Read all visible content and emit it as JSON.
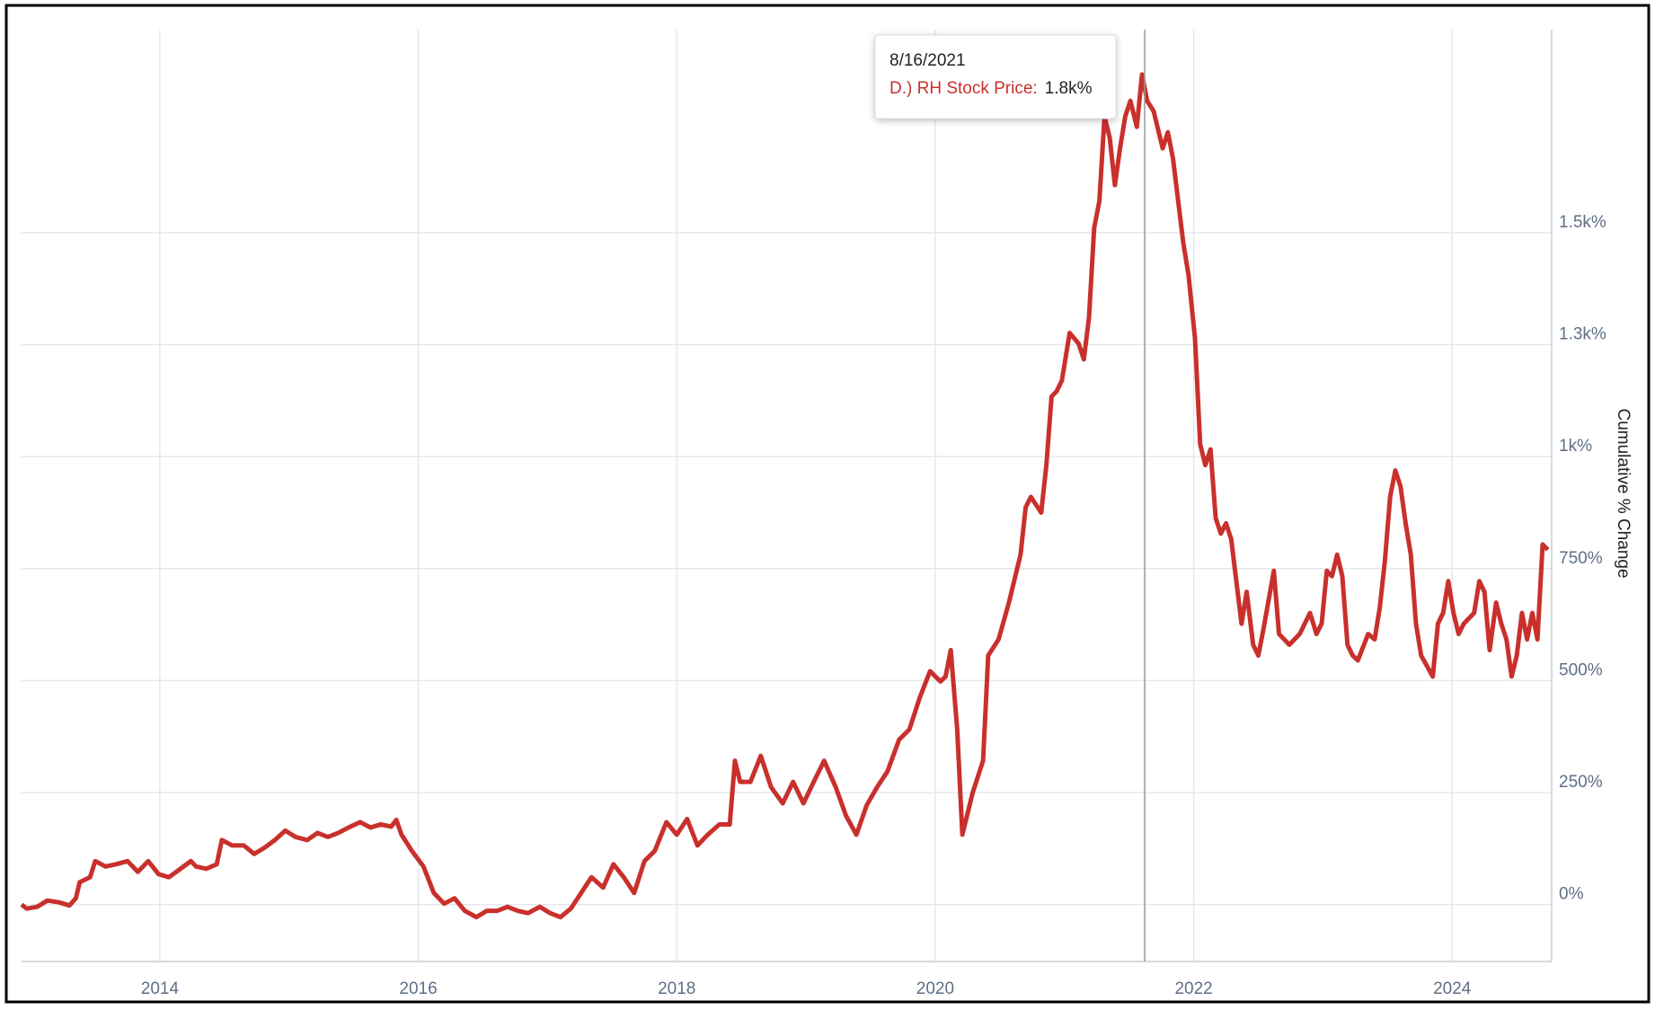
{
  "chart_data": {
    "type": "line",
    "y_label": "Cumulative % Change",
    "tooltip": {
      "date": "8/16/2021",
      "series": "D.) RH Stock Price:",
      "value": "1.8k%"
    },
    "x": [
      2012.93,
      2012.97,
      2013.05,
      2013.13,
      2013.22,
      2013.3,
      2013.35,
      2013.38,
      2013.46,
      2013.5,
      2013.58,
      2013.66,
      2013.75,
      2013.83,
      2013.91,
      2013.99,
      2014.07,
      2014.16,
      2014.24,
      2014.28,
      2014.36,
      2014.44,
      2014.48,
      2014.56,
      2014.65,
      2014.73,
      2014.81,
      2014.89,
      2014.97,
      2015.05,
      2015.14,
      2015.22,
      2015.3,
      2015.38,
      2015.46,
      2015.55,
      2015.63,
      2015.71,
      2015.79,
      2015.83,
      2015.87,
      2015.95,
      2016.04,
      2016.12,
      2016.2,
      2016.28,
      2016.36,
      2016.45,
      2016.53,
      2016.61,
      2016.69,
      2016.77,
      2016.85,
      2016.94,
      2017.02,
      2017.1,
      2017.18,
      2017.26,
      2017.34,
      2017.43,
      2017.51,
      2017.59,
      2017.67,
      2017.75,
      2017.83,
      2017.92,
      2018.0,
      2018.08,
      2018.16,
      2018.24,
      2018.33,
      2018.41,
      2018.45,
      2018.49,
      2018.57,
      2018.65,
      2018.73,
      2018.82,
      2018.9,
      2018.98,
      2019.06,
      2019.14,
      2019.23,
      2019.31,
      2019.39,
      2019.47,
      2019.55,
      2019.63,
      2019.72,
      2019.8,
      2019.88,
      2019.96,
      2020.04,
      2020.08,
      2020.12,
      2020.17,
      2020.21,
      2020.29,
      2020.37,
      2020.41,
      2020.49,
      2020.57,
      2020.66,
      2020.7,
      2020.74,
      2020.82,
      2020.86,
      2020.9,
      2020.94,
      2020.98,
      2021.04,
      2021.11,
      2021.15,
      2021.19,
      2021.23,
      2021.27,
      2021.31,
      2021.35,
      2021.39,
      2021.43,
      2021.47,
      2021.51,
      2021.56,
      2021.6,
      2021.64,
      2021.69,
      2021.76,
      2021.8,
      2021.84,
      2021.88,
      2021.92,
      2021.96,
      2022.01,
      2022.05,
      2022.09,
      2022.13,
      2022.17,
      2022.21,
      2022.25,
      2022.29,
      2022.33,
      2022.37,
      2022.41,
      2022.46,
      2022.5,
      2022.54,
      2022.62,
      2022.66,
      2022.74,
      2022.82,
      2022.9,
      2022.95,
      2022.99,
      2023.03,
      2023.07,
      2023.11,
      2023.15,
      2023.19,
      2023.23,
      2023.27,
      2023.35,
      2023.4,
      2023.44,
      2023.48,
      2023.52,
      2023.56,
      2023.6,
      2023.64,
      2023.68,
      2023.72,
      2023.76,
      2023.85,
      2023.89,
      2023.93,
      2023.97,
      2024.01,
      2024.05,
      2024.09,
      2024.17,
      2024.21,
      2024.25,
      2024.29,
      2024.34,
      2024.38,
      2024.42,
      2024.46,
      2024.5,
      2024.54,
      2024.58,
      2024.62,
      2024.66,
      2024.7,
      2024.74
    ],
    "series": [
      {
        "name": "D.) RH Stock Price",
        "color": "#c9302c",
        "values": [
          0,
          -9,
          -5,
          9,
          5,
          -2,
          14,
          50,
          61,
          97,
          85,
          90,
          97,
          73,
          97,
          68,
          61,
          80,
          97,
          85,
          80,
          90,
          144,
          132,
          132,
          113,
          127,
          144,
          165,
          151,
          144,
          160,
          151,
          160,
          172,
          184,
          172,
          179,
          174,
          189,
          156,
          120,
          85,
          26,
          2,
          14,
          -14,
          -28,
          -14,
          -14,
          -5,
          -14,
          -19,
          -5,
          -19,
          -28,
          -9,
          26,
          61,
          38,
          90,
          61,
          26,
          97,
          120,
          184,
          156,
          191,
          132,
          156,
          179,
          179,
          321,
          274,
          274,
          332,
          262,
          226,
          274,
          226,
          274,
          321,
          262,
          198,
          156,
          222,
          262,
          297,
          368,
          391,
          462,
          521,
          498,
          509,
          568,
          391,
          156,
          250,
          321,
          556,
          592,
          674,
          781,
          887,
          910,
          875,
          981,
          1134,
          1146,
          1170,
          1276,
          1252,
          1217,
          1311,
          1511,
          1570,
          1759,
          1712,
          1606,
          1688,
          1759,
          1794,
          1736,
          1853,
          1794,
          1771,
          1688,
          1724,
          1665,
          1570,
          1476,
          1405,
          1264,
          1028,
          981,
          1016,
          863,
          828,
          851,
          816,
          722,
          627,
          698,
          580,
          556,
          615,
          745,
          604,
          580,
          604,
          651,
          604,
          627,
          745,
          733,
          781,
          733,
          580,
          556,
          545,
          604,
          592,
          663,
          769,
          910,
          969,
          934,
          851,
          781,
          627,
          556,
          509,
          627,
          651,
          722,
          651,
          604,
          627,
          651,
          722,
          698,
          568,
          674,
          627,
          592,
          509,
          556,
          651,
          592,
          651,
          592,
          804,
          792
        ]
      }
    ],
    "xlim": [
      2012.93,
      2024.77
    ],
    "xticks": [
      2014,
      2016,
      2018,
      2020,
      2022,
      2024
    ],
    "ylim": [
      -127,
      1953
    ],
    "yticks": [
      {
        "value": 0,
        "label": "0%"
      },
      {
        "value": 250,
        "label": "250%"
      },
      {
        "value": 500,
        "label": "500%"
      },
      {
        "value": 750,
        "label": "750%"
      },
      {
        "value": 1000,
        "label": "1k%"
      },
      {
        "value": 1250,
        "label": "1.3k%"
      },
      {
        "value": 1500,
        "label": "1.5k%"
      }
    ],
    "grid": true
  }
}
